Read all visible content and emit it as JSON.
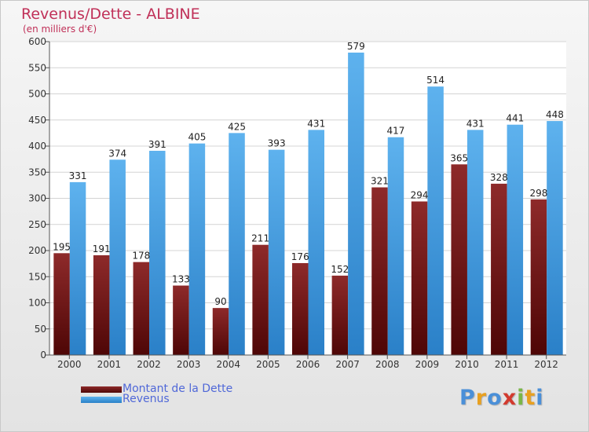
{
  "header": {
    "title": "Revenus/Dette - ALBINE",
    "subtitle": "(en milliers d'€)"
  },
  "logo": {
    "text": "Proxiti",
    "letter_colors": [
      "#4a8fd8",
      "#e8a020",
      "#4a8fd8",
      "#d23a2e",
      "#7ab648",
      "#e8a020",
      "#4a8fd8"
    ]
  },
  "colors": {
    "dette": "#8b1a1a",
    "revenus": "#3d9ee0",
    "title": "#c03058",
    "legend_text": "#5068d8"
  },
  "chart_data": {
    "type": "bar",
    "title": "Revenus/Dette - ALBINE",
    "subtitle": "(en milliers d'€)",
    "categories": [
      "2000",
      "2001",
      "2002",
      "2003",
      "2004",
      "2005",
      "2006",
      "2007",
      "2008",
      "2009",
      "2010",
      "2011",
      "2012"
    ],
    "series": [
      {
        "name": "Montant de la Dette",
        "values": [
          195,
          191,
          178,
          133,
          90,
          211,
          176,
          152,
          321,
          294,
          365,
          328,
          298
        ]
      },
      {
        "name": "Revenus",
        "values": [
          331,
          374,
          391,
          405,
          425,
          393,
          431,
          579,
          417,
          514,
          431,
          441,
          448
        ]
      }
    ],
    "ylim": [
      0,
      600
    ],
    "yticks": [
      0,
      50,
      100,
      150,
      200,
      250,
      300,
      350,
      400,
      450,
      500,
      550,
      600
    ],
    "grid": true,
    "legend": "bottom-left"
  }
}
